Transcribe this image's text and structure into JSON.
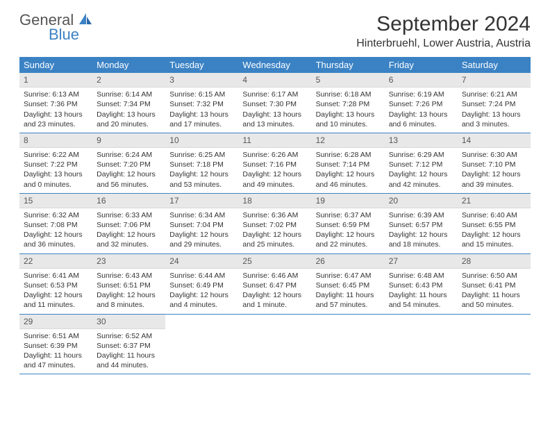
{
  "brand": {
    "general": "General",
    "blue": "Blue"
  },
  "title": "September 2024",
  "location": "Hinterbruehl, Lower Austria, Austria",
  "colors": {
    "header_bg": "#3b82c4",
    "header_text": "#ffffff",
    "daynum_bg": "#e8e8e8",
    "border": "#3b82c4",
    "text": "#333333",
    "logo_blue": "#3b82c4",
    "logo_gray": "#555555"
  },
  "weekdays": [
    "Sunday",
    "Monday",
    "Tuesday",
    "Wednesday",
    "Thursday",
    "Friday",
    "Saturday"
  ],
  "weeks": [
    [
      {
        "n": "1",
        "sr": "Sunrise: 6:13 AM",
        "ss": "Sunset: 7:36 PM",
        "d1": "Daylight: 13 hours",
        "d2": "and 23 minutes."
      },
      {
        "n": "2",
        "sr": "Sunrise: 6:14 AM",
        "ss": "Sunset: 7:34 PM",
        "d1": "Daylight: 13 hours",
        "d2": "and 20 minutes."
      },
      {
        "n": "3",
        "sr": "Sunrise: 6:15 AM",
        "ss": "Sunset: 7:32 PM",
        "d1": "Daylight: 13 hours",
        "d2": "and 17 minutes."
      },
      {
        "n": "4",
        "sr": "Sunrise: 6:17 AM",
        "ss": "Sunset: 7:30 PM",
        "d1": "Daylight: 13 hours",
        "d2": "and 13 minutes."
      },
      {
        "n": "5",
        "sr": "Sunrise: 6:18 AM",
        "ss": "Sunset: 7:28 PM",
        "d1": "Daylight: 13 hours",
        "d2": "and 10 minutes."
      },
      {
        "n": "6",
        "sr": "Sunrise: 6:19 AM",
        "ss": "Sunset: 7:26 PM",
        "d1": "Daylight: 13 hours",
        "d2": "and 6 minutes."
      },
      {
        "n": "7",
        "sr": "Sunrise: 6:21 AM",
        "ss": "Sunset: 7:24 PM",
        "d1": "Daylight: 13 hours",
        "d2": "and 3 minutes."
      }
    ],
    [
      {
        "n": "8",
        "sr": "Sunrise: 6:22 AM",
        "ss": "Sunset: 7:22 PM",
        "d1": "Daylight: 13 hours",
        "d2": "and 0 minutes."
      },
      {
        "n": "9",
        "sr": "Sunrise: 6:24 AM",
        "ss": "Sunset: 7:20 PM",
        "d1": "Daylight: 12 hours",
        "d2": "and 56 minutes."
      },
      {
        "n": "10",
        "sr": "Sunrise: 6:25 AM",
        "ss": "Sunset: 7:18 PM",
        "d1": "Daylight: 12 hours",
        "d2": "and 53 minutes."
      },
      {
        "n": "11",
        "sr": "Sunrise: 6:26 AM",
        "ss": "Sunset: 7:16 PM",
        "d1": "Daylight: 12 hours",
        "d2": "and 49 minutes."
      },
      {
        "n": "12",
        "sr": "Sunrise: 6:28 AM",
        "ss": "Sunset: 7:14 PM",
        "d1": "Daylight: 12 hours",
        "d2": "and 46 minutes."
      },
      {
        "n": "13",
        "sr": "Sunrise: 6:29 AM",
        "ss": "Sunset: 7:12 PM",
        "d1": "Daylight: 12 hours",
        "d2": "and 42 minutes."
      },
      {
        "n": "14",
        "sr": "Sunrise: 6:30 AM",
        "ss": "Sunset: 7:10 PM",
        "d1": "Daylight: 12 hours",
        "d2": "and 39 minutes."
      }
    ],
    [
      {
        "n": "15",
        "sr": "Sunrise: 6:32 AM",
        "ss": "Sunset: 7:08 PM",
        "d1": "Daylight: 12 hours",
        "d2": "and 36 minutes."
      },
      {
        "n": "16",
        "sr": "Sunrise: 6:33 AM",
        "ss": "Sunset: 7:06 PM",
        "d1": "Daylight: 12 hours",
        "d2": "and 32 minutes."
      },
      {
        "n": "17",
        "sr": "Sunrise: 6:34 AM",
        "ss": "Sunset: 7:04 PM",
        "d1": "Daylight: 12 hours",
        "d2": "and 29 minutes."
      },
      {
        "n": "18",
        "sr": "Sunrise: 6:36 AM",
        "ss": "Sunset: 7:02 PM",
        "d1": "Daylight: 12 hours",
        "d2": "and 25 minutes."
      },
      {
        "n": "19",
        "sr": "Sunrise: 6:37 AM",
        "ss": "Sunset: 6:59 PM",
        "d1": "Daylight: 12 hours",
        "d2": "and 22 minutes."
      },
      {
        "n": "20",
        "sr": "Sunrise: 6:39 AM",
        "ss": "Sunset: 6:57 PM",
        "d1": "Daylight: 12 hours",
        "d2": "and 18 minutes."
      },
      {
        "n": "21",
        "sr": "Sunrise: 6:40 AM",
        "ss": "Sunset: 6:55 PM",
        "d1": "Daylight: 12 hours",
        "d2": "and 15 minutes."
      }
    ],
    [
      {
        "n": "22",
        "sr": "Sunrise: 6:41 AM",
        "ss": "Sunset: 6:53 PM",
        "d1": "Daylight: 12 hours",
        "d2": "and 11 minutes."
      },
      {
        "n": "23",
        "sr": "Sunrise: 6:43 AM",
        "ss": "Sunset: 6:51 PM",
        "d1": "Daylight: 12 hours",
        "d2": "and 8 minutes."
      },
      {
        "n": "24",
        "sr": "Sunrise: 6:44 AM",
        "ss": "Sunset: 6:49 PM",
        "d1": "Daylight: 12 hours",
        "d2": "and 4 minutes."
      },
      {
        "n": "25",
        "sr": "Sunrise: 6:46 AM",
        "ss": "Sunset: 6:47 PM",
        "d1": "Daylight: 12 hours",
        "d2": "and 1 minute."
      },
      {
        "n": "26",
        "sr": "Sunrise: 6:47 AM",
        "ss": "Sunset: 6:45 PM",
        "d1": "Daylight: 11 hours",
        "d2": "and 57 minutes."
      },
      {
        "n": "27",
        "sr": "Sunrise: 6:48 AM",
        "ss": "Sunset: 6:43 PM",
        "d1": "Daylight: 11 hours",
        "d2": "and 54 minutes."
      },
      {
        "n": "28",
        "sr": "Sunrise: 6:50 AM",
        "ss": "Sunset: 6:41 PM",
        "d1": "Daylight: 11 hours",
        "d2": "and 50 minutes."
      }
    ],
    [
      {
        "n": "29",
        "sr": "Sunrise: 6:51 AM",
        "ss": "Sunset: 6:39 PM",
        "d1": "Daylight: 11 hours",
        "d2": "and 47 minutes."
      },
      {
        "n": "30",
        "sr": "Sunrise: 6:52 AM",
        "ss": "Sunset: 6:37 PM",
        "d1": "Daylight: 11 hours",
        "d2": "and 44 minutes."
      },
      null,
      null,
      null,
      null,
      null
    ]
  ]
}
